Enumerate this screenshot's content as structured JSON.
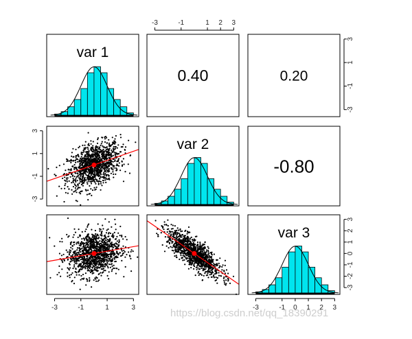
{
  "chart_data": {
    "type": "pairs",
    "variables": [
      "var 1",
      "var 2",
      "var 3"
    ],
    "correlations": [
      {
        "row": 1,
        "col": 2,
        "label": "0.40",
        "value": 0.4
      },
      {
        "row": 1,
        "col": 3,
        "label": "0.20",
        "value": 0.2
      },
      {
        "row": 2,
        "col": 3,
        "label": "-0.80",
        "value": -0.8
      }
    ],
    "axis_range": [
      -3.6,
      3.4
    ],
    "tick_values": [
      -3,
      -1,
      1,
      3
    ],
    "tick_labels": [
      "-3",
      "-1",
      "1",
      "3"
    ],
    "top_tick_values": [
      -3,
      -1,
      1,
      2,
      3
    ],
    "top_tick_labels": [
      "-3",
      "-1",
      "1",
      "2",
      "3"
    ],
    "bottom3_tick_values": [
      -3,
      -1,
      0,
      1,
      2,
      3
    ],
    "bottom3_tick_labels": [
      "-3",
      "-1",
      "0",
      "1",
      "2",
      "3"
    ],
    "right3_tick_values": [
      -3,
      -2,
      -1,
      0,
      1,
      2,
      3
    ],
    "right3_tick_labels": [
      "-3",
      "-2",
      "-1",
      "0",
      "1",
      "2",
      "3"
    ],
    "histogram": {
      "bins": [
        -3,
        -2.5,
        -2,
        -1.5,
        -1,
        -0.5,
        0,
        0.5,
        1,
        1.5,
        2,
        2.5,
        3
      ],
      "density": [
        0.01,
        0.03,
        0.07,
        0.13,
        0.22,
        0.35,
        0.4,
        0.35,
        0.22,
        0.13,
        0.07,
        0.02
      ],
      "fill_color": "#00e5ee"
    },
    "scatter": {
      "point_color": "#000000",
      "fit_color": "#ff0000",
      "n_points": 1200,
      "panels": [
        {
          "row": 2,
          "col": 1,
          "slope": 0.4,
          "intercept": 0.0
        },
        {
          "row": 3,
          "col": 1,
          "slope": 0.2,
          "intercept": 0.0
        },
        {
          "row": 3,
          "col": 2,
          "slope": -0.8,
          "intercept": 0.0
        }
      ]
    }
  },
  "watermark": "https://blog.csdn.net/qq_18390291"
}
